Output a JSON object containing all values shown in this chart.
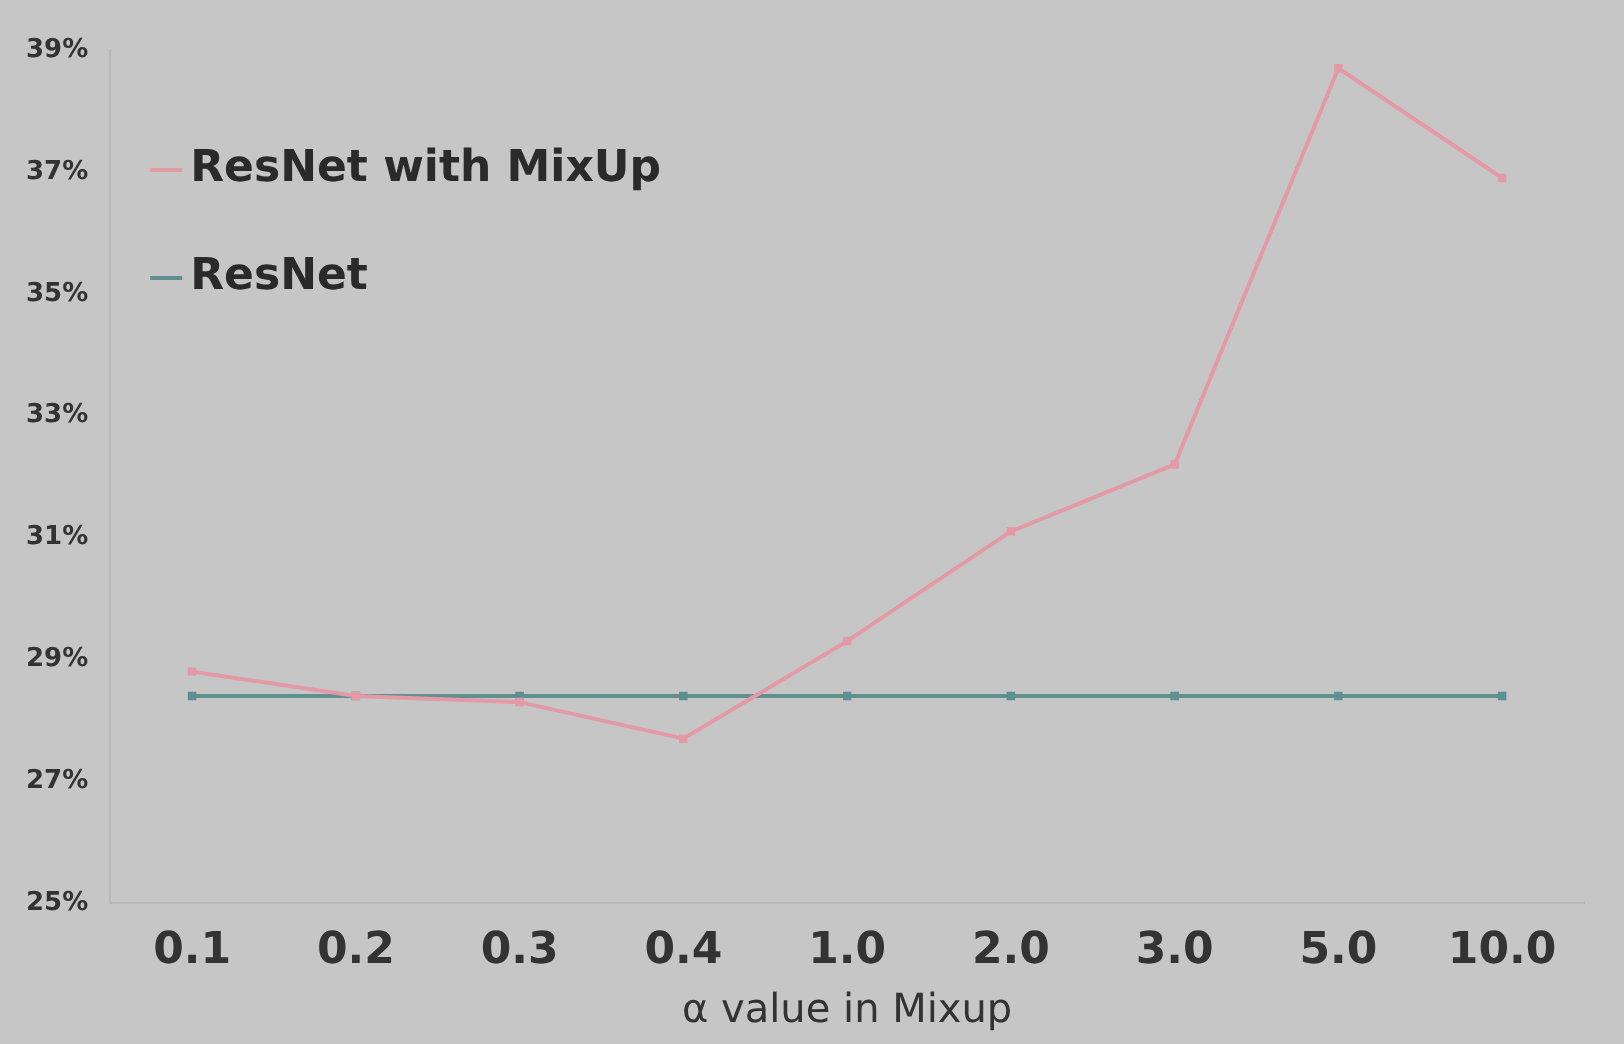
{
  "chart_data": {
    "type": "line",
    "xlabel": "α value in Mixup",
    "categories": [
      "0.1",
      "0.2",
      "0.3",
      "0.4",
      "1.0",
      "2.0",
      "3.0",
      "5.0",
      "10.0"
    ],
    "series": [
      {
        "name": "ResNet with MixUp",
        "color": "#e39aa6",
        "values": [
          28.8,
          28.4,
          28.3,
          27.7,
          29.3,
          31.1,
          32.2,
          38.7,
          36.9
        ]
      },
      {
        "name": "ResNet",
        "color": "#5f8f8f",
        "values": [
          28.4,
          28.4,
          28.4,
          28.4,
          28.4,
          28.4,
          28.4,
          28.4,
          28.4
        ]
      }
    ],
    "ylim": [
      25,
      39
    ],
    "yticks": [
      {
        "value": 25,
        "label": "25%"
      },
      {
        "value": 27,
        "label": "27%"
      },
      {
        "value": 29,
        "label": "29%"
      },
      {
        "value": 31,
        "label": "31%"
      },
      {
        "value": 33,
        "label": "33%"
      },
      {
        "value": 35,
        "label": "35%"
      },
      {
        "value": 37,
        "label": "37%"
      },
      {
        "value": 39,
        "label": "39%"
      }
    ],
    "grid": false,
    "legend": "top left",
    "marker": "square",
    "line_style": "solid"
  }
}
